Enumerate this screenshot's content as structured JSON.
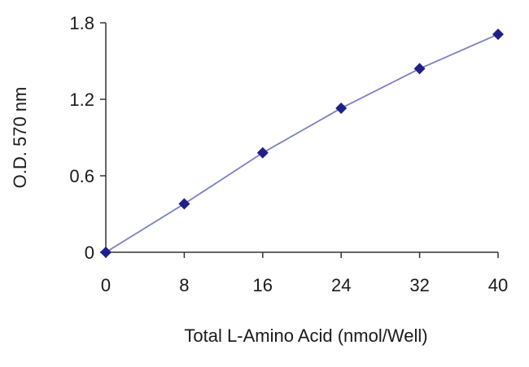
{
  "chart_data": {
    "type": "line",
    "title": "",
    "xlabel": "Total L-Amino Acid (nmol/Well)",
    "ylabel": "O.D. 570 nm",
    "xlim": [
      0,
      40
    ],
    "ylim": [
      0,
      1.8
    ],
    "x_ticks": [
      "0",
      "8",
      "16",
      "24",
      "32",
      "40"
    ],
    "y_ticks": [
      "0",
      "0.6",
      "1.2",
      "1.8"
    ],
    "grid": false,
    "legend": "none",
    "series": [
      {
        "x": [
          0,
          8,
          16,
          24,
          32,
          40
        ],
        "y": [
          0,
          0.38,
          0.78,
          1.13,
          1.44,
          1.71
        ],
        "color": "#7b80c4",
        "marker_color": "#1f1f8a",
        "marker": "diamond"
      }
    ]
  }
}
